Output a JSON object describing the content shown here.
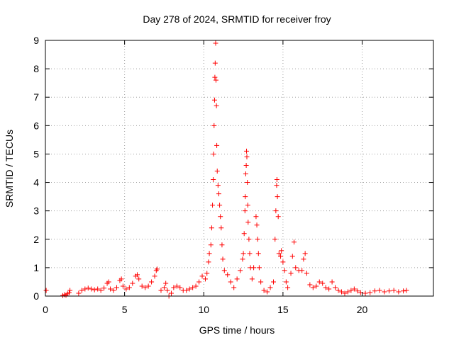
{
  "chart_data": {
    "type": "scatter",
    "title": "Day 278 of 2024, SRMTID for receiver froy",
    "xlabel": "GPS time / hours",
    "ylabel": "SRMTID / TECUs",
    "xlim": [
      0,
      24.5
    ],
    "ylim": [
      0,
      9
    ],
    "xticks": [
      0,
      5,
      10,
      15,
      20
    ],
    "yticks": [
      0,
      1,
      2,
      3,
      4,
      5,
      6,
      7,
      8,
      9
    ],
    "grid": true,
    "marker": "+",
    "color": "#ff0000",
    "series": [
      {
        "name": "SRMTID",
        "points": [
          [
            0.05,
            0.2
          ],
          [
            1.1,
            0.02
          ],
          [
            1.2,
            0.05
          ],
          [
            1.3,
            0.03
          ],
          [
            1.4,
            0.08
          ],
          [
            1.5,
            0.12
          ],
          [
            1.55,
            0.2
          ],
          [
            2.1,
            0.1
          ],
          [
            2.3,
            0.2
          ],
          [
            2.5,
            0.25
          ],
          [
            2.7,
            0.28
          ],
          [
            2.9,
            0.25
          ],
          [
            3.1,
            0.22
          ],
          [
            3.3,
            0.25
          ],
          [
            3.5,
            0.2
          ],
          [
            3.7,
            0.28
          ],
          [
            3.9,
            0.45
          ],
          [
            4.0,
            0.5
          ],
          [
            4.1,
            0.25
          ],
          [
            4.3,
            0.2
          ],
          [
            4.5,
            0.3
          ],
          [
            4.7,
            0.55
          ],
          [
            4.8,
            0.6
          ],
          [
            4.9,
            0.35
          ],
          [
            5.1,
            0.25
          ],
          [
            5.3,
            0.3
          ],
          [
            5.5,
            0.45
          ],
          [
            5.7,
            0.7
          ],
          [
            5.8,
            0.75
          ],
          [
            5.9,
            0.6
          ],
          [
            6.1,
            0.35
          ],
          [
            6.3,
            0.3
          ],
          [
            6.5,
            0.35
          ],
          [
            6.7,
            0.5
          ],
          [
            6.9,
            0.7
          ],
          [
            7.0,
            0.9
          ],
          [
            7.05,
            0.95
          ],
          [
            7.3,
            0.2
          ],
          [
            7.5,
            0.3
          ],
          [
            7.6,
            0.45
          ],
          [
            7.7,
            0.2
          ],
          [
            7.8,
            0.0
          ],
          [
            7.95,
            0.1
          ],
          [
            8.1,
            0.3
          ],
          [
            8.3,
            0.35
          ],
          [
            8.5,
            0.3
          ],
          [
            8.7,
            0.2
          ],
          [
            8.9,
            0.2
          ],
          [
            9.1,
            0.25
          ],
          [
            9.3,
            0.3
          ],
          [
            9.5,
            0.35
          ],
          [
            9.7,
            0.5
          ],
          [
            9.9,
            0.7
          ],
          [
            10.1,
            0.6
          ],
          [
            10.2,
            0.8
          ],
          [
            10.3,
            1.2
          ],
          [
            10.35,
            1.5
          ],
          [
            10.45,
            1.8
          ],
          [
            10.5,
            2.4
          ],
          [
            10.55,
            3.2
          ],
          [
            10.6,
            4.1
          ],
          [
            10.62,
            5.0
          ],
          [
            10.65,
            6.0
          ],
          [
            10.68,
            6.9
          ],
          [
            10.7,
            7.7
          ],
          [
            10.72,
            8.2
          ],
          [
            10.75,
            8.9
          ],
          [
            10.77,
            7.6
          ],
          [
            10.8,
            6.7
          ],
          [
            10.82,
            5.3
          ],
          [
            10.85,
            4.4
          ],
          [
            10.9,
            3.9
          ],
          [
            10.95,
            3.6
          ],
          [
            11.0,
            3.2
          ],
          [
            11.05,
            2.8
          ],
          [
            11.1,
            2.4
          ],
          [
            11.15,
            1.8
          ],
          [
            11.2,
            1.3
          ],
          [
            11.3,
            0.9
          ],
          [
            11.5,
            0.75
          ],
          [
            11.7,
            0.5
          ],
          [
            11.9,
            0.3
          ],
          [
            12.1,
            0.6
          ],
          [
            12.3,
            0.9
          ],
          [
            12.45,
            1.3
          ],
          [
            12.5,
            1.5
          ],
          [
            12.55,
            2.2
          ],
          [
            12.6,
            3.0
          ],
          [
            12.62,
            3.5
          ],
          [
            12.65,
            4.3
          ],
          [
            12.68,
            4.6
          ],
          [
            12.7,
            5.1
          ],
          [
            12.72,
            4.9
          ],
          [
            12.75,
            4.0
          ],
          [
            12.78,
            3.2
          ],
          [
            12.8,
            2.6
          ],
          [
            12.85,
            2.0
          ],
          [
            12.9,
            1.5
          ],
          [
            12.95,
            1.0
          ],
          [
            13.05,
            0.6
          ],
          [
            13.15,
            1.0
          ],
          [
            13.3,
            2.8
          ],
          [
            13.35,
            2.5
          ],
          [
            13.4,
            2.0
          ],
          [
            13.45,
            1.5
          ],
          [
            13.5,
            1.0
          ],
          [
            13.6,
            0.5
          ],
          [
            13.8,
            0.2
          ],
          [
            14.0,
            0.15
          ],
          [
            14.2,
            0.3
          ],
          [
            14.4,
            0.5
          ],
          [
            14.5,
            2.0
          ],
          [
            14.55,
            3.0
          ],
          [
            14.6,
            3.9
          ],
          [
            14.62,
            4.1
          ],
          [
            14.65,
            3.5
          ],
          [
            14.7,
            2.8
          ],
          [
            14.75,
            1.5
          ],
          [
            14.85,
            1.4
          ],
          [
            14.9,
            1.6
          ],
          [
            15.0,
            1.2
          ],
          [
            15.1,
            0.9
          ],
          [
            15.2,
            0.5
          ],
          [
            15.3,
            0.3
          ],
          [
            15.5,
            0.8
          ],
          [
            15.6,
            1.4
          ],
          [
            15.7,
            1.9
          ],
          [
            15.8,
            1.0
          ],
          [
            16.0,
            0.9
          ],
          [
            16.2,
            0.9
          ],
          [
            16.3,
            1.3
          ],
          [
            16.4,
            1.5
          ],
          [
            16.5,
            0.8
          ],
          [
            16.7,
            0.4
          ],
          [
            16.9,
            0.3
          ],
          [
            17.1,
            0.35
          ],
          [
            17.3,
            0.5
          ],
          [
            17.5,
            0.45
          ],
          [
            17.7,
            0.3
          ],
          [
            17.9,
            0.25
          ],
          [
            18.1,
            0.5
          ],
          [
            18.3,
            0.3
          ],
          [
            18.5,
            0.2
          ],
          [
            18.7,
            0.15
          ],
          [
            18.9,
            0.1
          ],
          [
            19.1,
            0.15
          ],
          [
            19.3,
            0.2
          ],
          [
            19.5,
            0.25
          ],
          [
            19.7,
            0.18
          ],
          [
            19.9,
            0.12
          ],
          [
            20.2,
            0.1
          ],
          [
            20.5,
            0.12
          ],
          [
            20.8,
            0.18
          ],
          [
            21.1,
            0.2
          ],
          [
            21.4,
            0.15
          ],
          [
            21.7,
            0.18
          ],
          [
            22.0,
            0.2
          ],
          [
            22.3,
            0.15
          ],
          [
            22.6,
            0.18
          ],
          [
            22.8,
            0.2
          ]
        ]
      }
    ]
  }
}
